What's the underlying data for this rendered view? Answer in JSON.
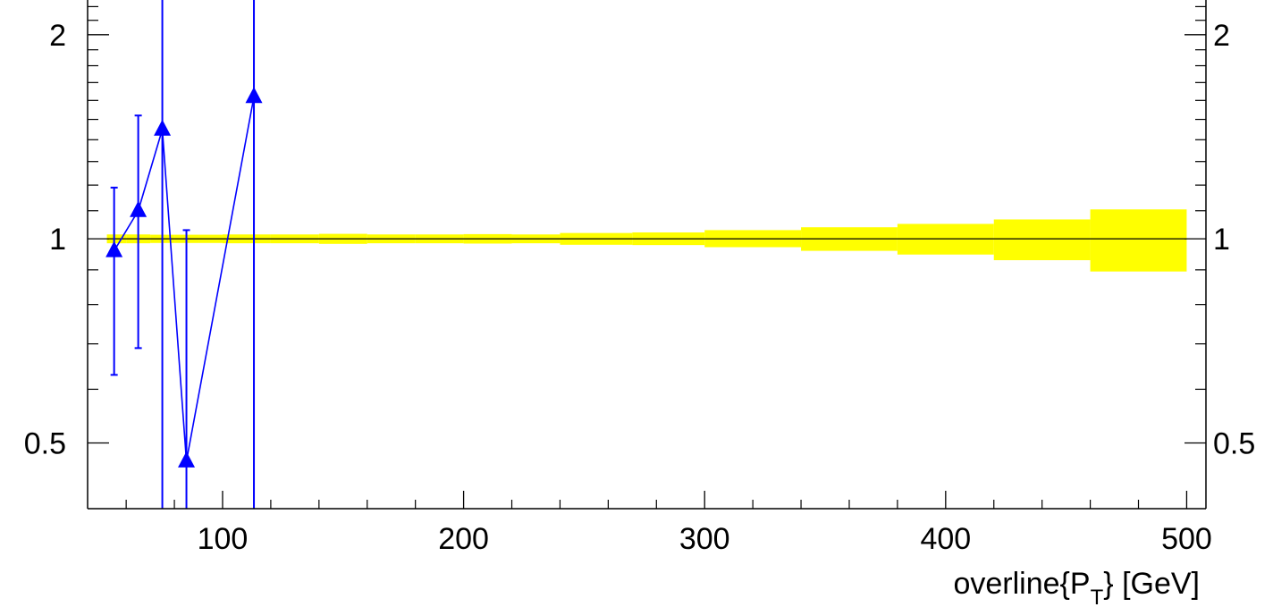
{
  "chart_data": {
    "type": "scatter",
    "title": "",
    "xlabel": "overline{P",
    "xlabel_sub": "T",
    "xlabel_tail": "} [GeV]",
    "ylabel": "",
    "x_scale": "linear",
    "y_scale": "log",
    "xlim": [
      44,
      508
    ],
    "ylim": [
      0.4,
      2.25
    ],
    "x_major_ticks": [
      100,
      200,
      300,
      400,
      500
    ],
    "x_tick_labels": [
      "100",
      "200",
      "300",
      "400",
      "500"
    ],
    "y_major_ticks": [
      0.5,
      1,
      2
    ],
    "y_tick_labels": [
      "0.5",
      "1",
      "2"
    ],
    "y_minor_ticks": [
      0.6,
      0.7,
      0.8,
      0.9,
      1.1,
      1.2,
      1.3,
      1.4,
      1.5,
      1.6,
      1.7,
      1.8,
      1.9,
      2.1,
      2.2
    ],
    "reference_line": 1,
    "band": {
      "color": "#ffff00",
      "bins": [
        {
          "x_low": 52,
          "x_high": 60,
          "low": 0.985,
          "high": 1.015
        },
        {
          "x_low": 60,
          "x_high": 70,
          "low": 0.985,
          "high": 1.015
        },
        {
          "x_low": 70,
          "x_high": 80,
          "low": 0.986,
          "high": 1.014
        },
        {
          "x_low": 80,
          "x_high": 90,
          "low": 0.986,
          "high": 1.014
        },
        {
          "x_low": 90,
          "x_high": 100,
          "low": 0.986,
          "high": 1.014
        },
        {
          "x_low": 100,
          "x_high": 120,
          "low": 0.985,
          "high": 1.015
        },
        {
          "x_low": 120,
          "x_high": 140,
          "low": 0.985,
          "high": 1.015
        },
        {
          "x_low": 140,
          "x_high": 160,
          "low": 0.983,
          "high": 1.017
        },
        {
          "x_low": 160,
          "x_high": 180,
          "low": 0.985,
          "high": 1.015
        },
        {
          "x_low": 180,
          "x_high": 200,
          "low": 0.985,
          "high": 1.015
        },
        {
          "x_low": 200,
          "x_high": 220,
          "low": 0.984,
          "high": 1.016
        },
        {
          "x_low": 220,
          "x_high": 240,
          "low": 0.985,
          "high": 1.015
        },
        {
          "x_low": 240,
          "x_high": 270,
          "low": 0.98,
          "high": 1.02
        },
        {
          "x_low": 270,
          "x_high": 300,
          "low": 0.979,
          "high": 1.022
        },
        {
          "x_low": 300,
          "x_high": 340,
          "low": 0.972,
          "high": 1.03
        },
        {
          "x_low": 340,
          "x_high": 380,
          "low": 0.96,
          "high": 1.04
        },
        {
          "x_low": 380,
          "x_high": 420,
          "low": 0.948,
          "high": 1.052
        },
        {
          "x_low": 420,
          "x_high": 460,
          "low": 0.93,
          "high": 1.068
        },
        {
          "x_low": 460,
          "x_high": 500,
          "low": 0.895,
          "high": 1.105
        }
      ]
    },
    "series": [
      {
        "color": "#0000ff",
        "marker": "triangle-up",
        "points": [
          {
            "x": 55,
            "y": 0.96,
            "err_low": 0.63,
            "err_high": 1.19
          },
          {
            "x": 65,
            "y": 1.1,
            "err_low": 0.69,
            "err_high": 1.52
          },
          {
            "x": 75,
            "y": 1.45,
            "err_low": 0.3,
            "err_high": 3.0
          },
          {
            "x": 85,
            "y": 0.47,
            "err_low": 0.3,
            "err_high": 1.03
          },
          {
            "x": 113,
            "y": 1.62,
            "err_low": 0.3,
            "err_high": 3.0
          }
        ]
      }
    ]
  }
}
